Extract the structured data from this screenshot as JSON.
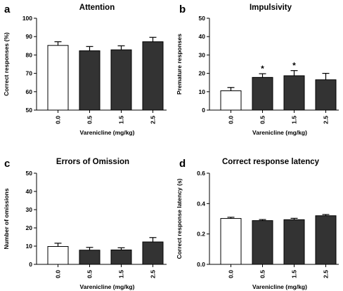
{
  "chart_data": [
    {
      "panel": "a",
      "title": "Attention",
      "type": "bar",
      "categories": [
        "0.0",
        "0.5",
        "1.5",
        "2.5"
      ],
      "values": [
        85.2,
        82.3,
        82.8,
        87.2
      ],
      "errors": [
        2.0,
        2.3,
        2.2,
        2.4
      ],
      "significance": [
        "",
        "",
        "",
        ""
      ],
      "bar_colors": [
        "#ffffff",
        "#333333",
        "#333333",
        "#333333"
      ],
      "xlabel": "Varenicline (mg/kg)",
      "ylabel": "Correct responses (%)",
      "ylim": [
        50,
        100
      ],
      "yticks": [
        50,
        60,
        70,
        80,
        90,
        100
      ],
      "yticklabels": [
        "50",
        "60",
        "70",
        "80",
        "90",
        "100"
      ],
      "grid": false
    },
    {
      "panel": "b",
      "title": "Impulsivity",
      "type": "bar",
      "categories": [
        "0.0",
        "0.5",
        "1.5",
        "2.5"
      ],
      "values": [
        10.5,
        17.8,
        18.7,
        16.5
      ],
      "errors": [
        1.8,
        2.0,
        2.8,
        3.5
      ],
      "significance": [
        "",
        "*",
        "*",
        ""
      ],
      "bar_colors": [
        "#ffffff",
        "#333333",
        "#333333",
        "#333333"
      ],
      "xlabel": "Varenicline (mg/kg)",
      "ylabel": "Premature responses",
      "ylim": [
        0,
        50
      ],
      "yticks": [
        0,
        10,
        20,
        30,
        40,
        50
      ],
      "yticklabels": [
        "0",
        "10",
        "20",
        "30",
        "40",
        "50"
      ],
      "grid": false
    },
    {
      "panel": "c",
      "title": "Errors of Omission",
      "type": "bar",
      "categories": [
        "0.0",
        "0.5",
        "1.5",
        "2.5"
      ],
      "values": [
        9.8,
        7.8,
        7.9,
        12.3
      ],
      "errors": [
        1.8,
        1.5,
        1.2,
        2.4
      ],
      "significance": [
        "",
        "",
        "",
        ""
      ],
      "bar_colors": [
        "#ffffff",
        "#333333",
        "#333333",
        "#333333"
      ],
      "xlabel": "Varenicline (mg/kg)",
      "ylabel": "Number of omissions",
      "ylim": [
        0,
        50
      ],
      "yticks": [
        0,
        10,
        20,
        30,
        40,
        50
      ],
      "yticklabels": [
        "0",
        "10",
        "20",
        "30",
        "40",
        "50"
      ],
      "grid": false
    },
    {
      "panel": "d",
      "title": "Correct response latency",
      "type": "bar",
      "categories": [
        "0.0",
        "0.5",
        "1.5",
        "2.5"
      ],
      "values": [
        0.302,
        0.288,
        0.294,
        0.32
      ],
      "errors": [
        0.008,
        0.007,
        0.009,
        0.008
      ],
      "significance": [
        "",
        "",
        "",
        ""
      ],
      "bar_colors": [
        "#ffffff",
        "#333333",
        "#333333",
        "#333333"
      ],
      "xlabel": "Varenicline (mg/kg)",
      "ylabel": "Correct response latency (s)",
      "ylim": [
        0,
        0.6
      ],
      "yticks": [
        0,
        0.2,
        0.4,
        0.6
      ],
      "yticklabels": [
        "0.0",
        "0.2",
        "0.4",
        "0.6"
      ],
      "grid": false
    }
  ]
}
